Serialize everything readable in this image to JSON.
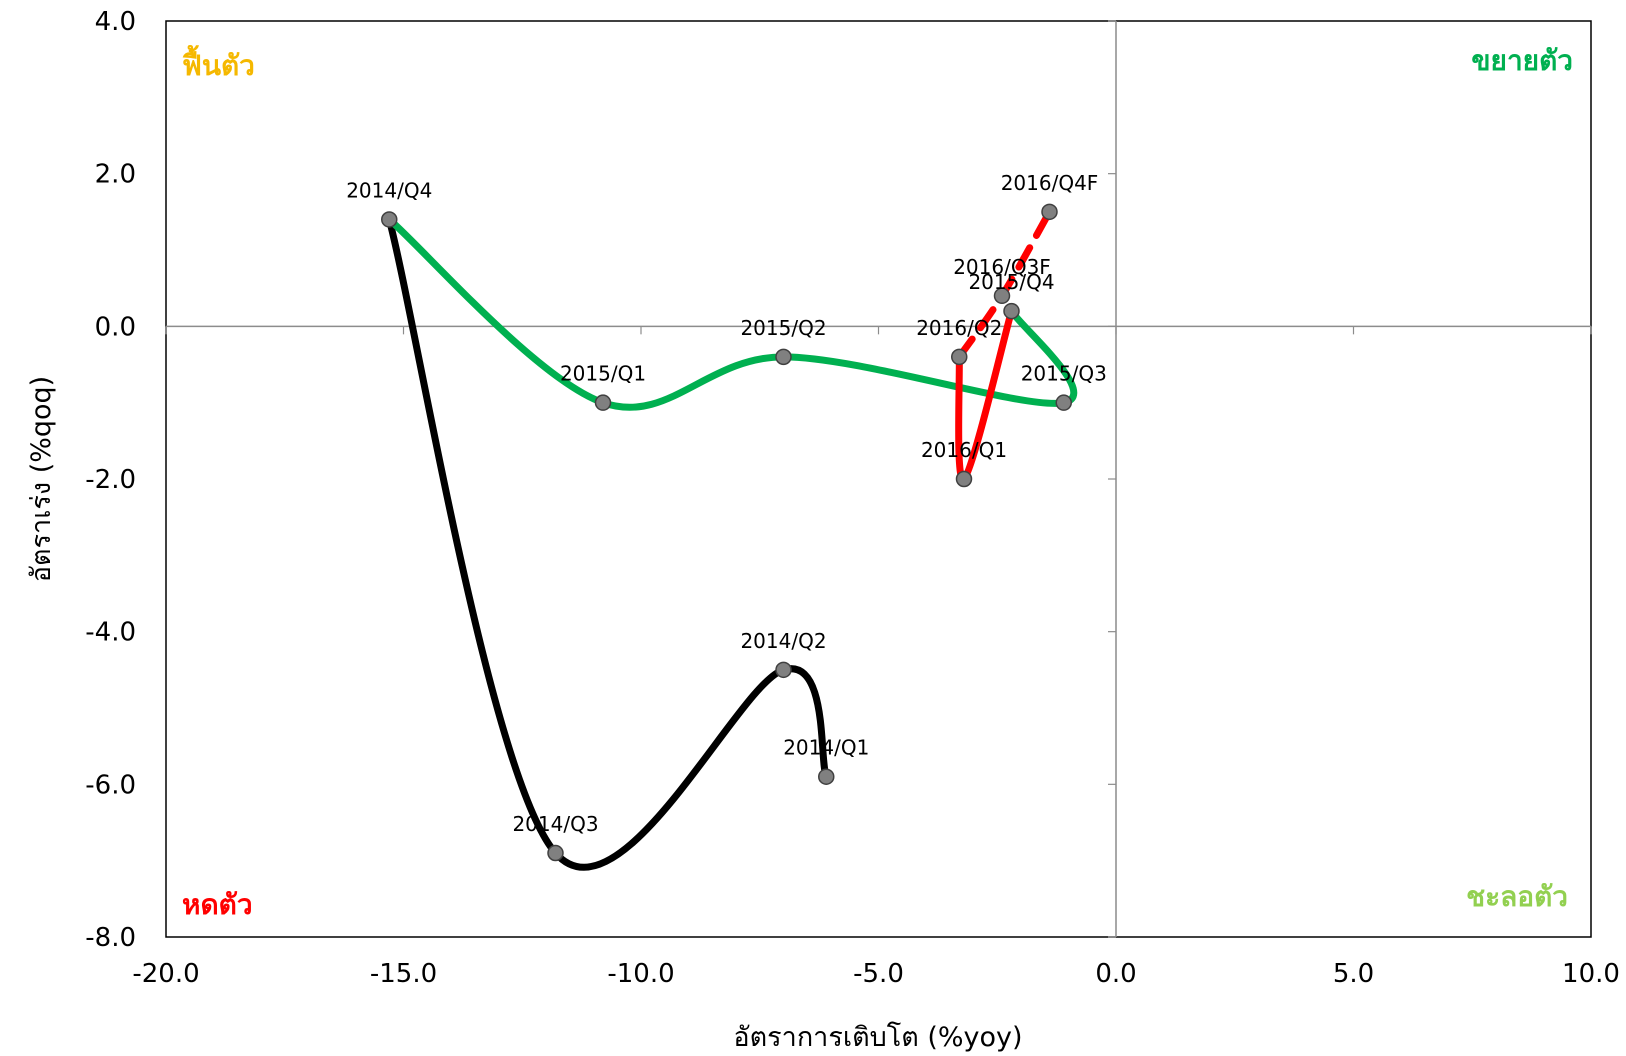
{
  "chart_data": {
    "type": "scatter",
    "title": "",
    "xlabel": "อัตราการเติบโต (%yoy)",
    "ylabel": "อัตราเร่ง (%qoq)",
    "xlim": [
      -20,
      10
    ],
    "ylim": [
      -8,
      4
    ],
    "x_ticks": [
      "-20.0",
      "-15.0",
      "-10.0",
      "-5.0",
      "0.0",
      "5.0",
      "10.0"
    ],
    "y_ticks": [
      "4.0",
      "2.0",
      "0.0",
      "-2.0",
      "-4.0",
      "-6.0",
      "-8.0"
    ],
    "grid": false,
    "legend": "none",
    "quadrant_labels": {
      "top_left": {
        "text": "ฟื้นตัว",
        "color": "#f5b800"
      },
      "top_right": {
        "text": "ขยายตัว",
        "color": "#00b050"
      },
      "bottom_left": {
        "text": "หดตัว",
        "color": "#ff0000"
      },
      "bottom_right": {
        "text": "ชะลอตัว",
        "color": "#92d050"
      }
    },
    "series": [
      {
        "color": "#000000",
        "style": "solid",
        "points": [
          {
            "label": "2014/Q1",
            "x": -6.1,
            "y": -5.9
          },
          {
            "label": "2014/Q2",
            "x": -7.0,
            "y": -4.5
          },
          {
            "label": "2014/Q3",
            "x": -11.8,
            "y": -6.9
          },
          {
            "label": "2014/Q4",
            "x": -15.3,
            "y": 1.4
          }
        ]
      },
      {
        "color": "#00b050",
        "style": "solid",
        "points": [
          {
            "label": "2014/Q4",
            "x": -15.3,
            "y": 1.4
          },
          {
            "label": "2015/Q1",
            "x": -10.8,
            "y": -1.0
          },
          {
            "label": "2015/Q2",
            "x": -7.0,
            "y": -0.4
          },
          {
            "label": "2015/Q3",
            "x": -1.1,
            "y": -1.0
          },
          {
            "label": "2015/Q4",
            "x": -2.2,
            "y": 0.2
          }
        ]
      },
      {
        "color": "#ff0000",
        "style": "solid",
        "points": [
          {
            "label": "2015/Q4",
            "x": -2.2,
            "y": 0.2
          },
          {
            "label": "2016/Q1",
            "x": -3.2,
            "y": -2.0
          },
          {
            "label": "2016/Q2",
            "x": -3.3,
            "y": -0.4
          }
        ]
      },
      {
        "color": "#ff0000",
        "style": "dashed",
        "points": [
          {
            "label": "2016/Q2",
            "x": -3.3,
            "y": -0.4
          },
          {
            "label": "2016/Q3F",
            "x": -2.4,
            "y": 0.4
          },
          {
            "label": "2016/Q4F",
            "x": -1.4,
            "y": 1.5
          }
        ]
      }
    ],
    "point_labels": [
      {
        "text": "2014/Q1",
        "x": -6.1,
        "y": -5.9
      },
      {
        "text": "2014/Q2",
        "x": -7.0,
        "y": -4.5
      },
      {
        "text": "2014/Q3",
        "x": -11.8,
        "y": -6.9
      },
      {
        "text": "2014/Q4",
        "x": -15.3,
        "y": 1.4
      },
      {
        "text": "2015/Q1",
        "x": -10.8,
        "y": -1.0
      },
      {
        "text": "2015/Q2",
        "x": -7.0,
        "y": -0.4
      },
      {
        "text": "2015/Q3",
        "x": -1.1,
        "y": -1.0
      },
      {
        "text": "2015/Q4",
        "x": -2.2,
        "y": 0.2
      },
      {
        "text": "2016/Q1",
        "x": -3.2,
        "y": -2.0
      },
      {
        "text": "2016/Q2",
        "x": -3.3,
        "y": -0.4
      },
      {
        "text": "2016/Q3F",
        "x": -2.4,
        "y": 0.4
      },
      {
        "text": "2016/Q4F",
        "x": -1.4,
        "y": 1.5
      }
    ],
    "marker_color": "#808080"
  }
}
